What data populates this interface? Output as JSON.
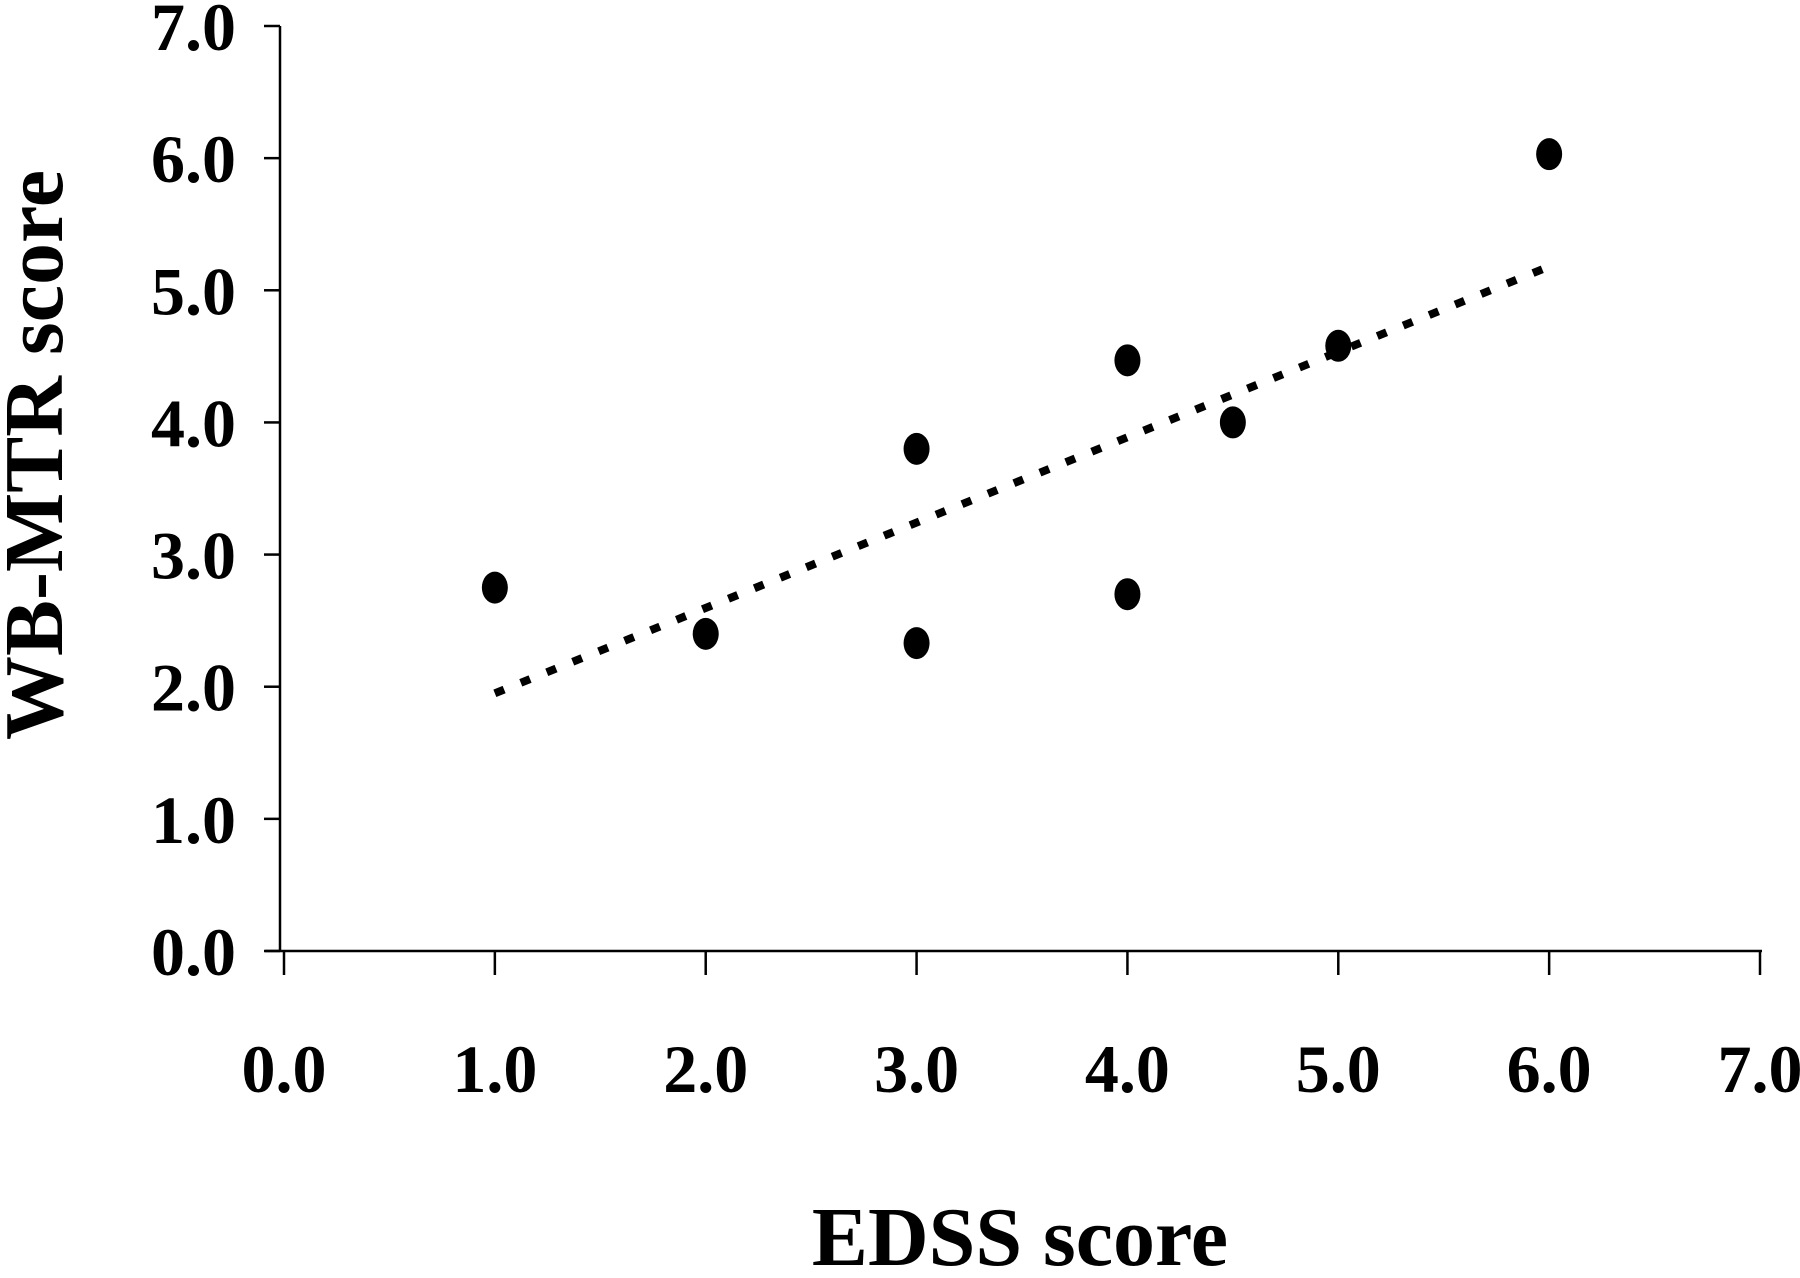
{
  "chart_data": {
    "type": "scatter",
    "title": "",
    "xlabel": "EDSS score",
    "ylabel": "WB-MTR score",
    "xlim": [
      0,
      7
    ],
    "ylim": [
      0,
      7
    ],
    "grid": false,
    "x_ticks": [
      "0.0",
      "1.0",
      "2.0",
      "3.0",
      "4.0",
      "5.0",
      "6.0",
      "7.0"
    ],
    "y_ticks": [
      "0.0",
      "1.0",
      "2.0",
      "3.0",
      "4.0",
      "5.0",
      "6.0",
      "7.0"
    ],
    "series": [
      {
        "points": [
          {
            "x": 1.0,
            "y": 2.75
          },
          {
            "x": 2.0,
            "y": 2.4
          },
          {
            "x": 3.0,
            "y": 3.8
          },
          {
            "x": 3.0,
            "y": 2.33
          },
          {
            "x": 4.0,
            "y": 4.47
          },
          {
            "x": 4.0,
            "y": 2.7
          },
          {
            "x": 4.5,
            "y": 4.0
          },
          {
            "x": 5.0,
            "y": 4.58
          },
          {
            "x": 6.0,
            "y": 6.03
          }
        ]
      }
    ],
    "trendline": {
      "style": "dotted",
      "x": [
        1.0,
        6.0
      ],
      "y": [
        1.95,
        5.18
      ]
    }
  }
}
